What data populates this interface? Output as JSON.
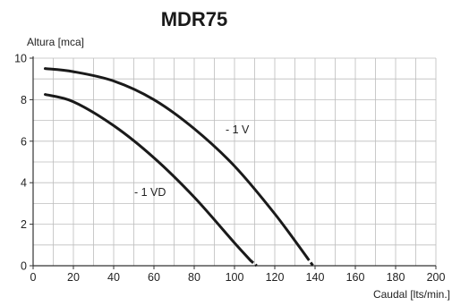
{
  "chart_data": {
    "type": "line",
    "title": "MDR75",
    "xlabel": "Caudal [lts/min.]",
    "ylabel": "Altura [mca]",
    "xlim": [
      0,
      200
    ],
    "ylim": [
      0,
      10
    ],
    "x_ticks": [
      0,
      20,
      40,
      60,
      80,
      100,
      120,
      140,
      160,
      180,
      200
    ],
    "y_ticks": [
      0,
      2,
      4,
      6,
      8,
      10
    ],
    "grid": true,
    "series": [
      {
        "name": "- 1 V",
        "x": [
          6,
          20,
          40,
          60,
          80,
          100,
          120,
          136
        ],
        "y": [
          9.5,
          9.35,
          8.9,
          8.0,
          6.6,
          4.8,
          2.5,
          0.4
        ],
        "dashed_x": [
          136,
          139
        ],
        "dashed_y": [
          0.4,
          0.0
        ],
        "color": "#1a1a1a"
      },
      {
        "name": "- 1 VD",
        "x": [
          6,
          20,
          40,
          60,
          80,
          100,
          108
        ],
        "y": [
          8.25,
          7.9,
          6.75,
          5.2,
          3.3,
          1.1,
          0.25
        ],
        "dashed_x": [
          108,
          111
        ],
        "dashed_y": [
          0.25,
          0.0
        ],
        "color": "#1a1a1a"
      }
    ]
  }
}
